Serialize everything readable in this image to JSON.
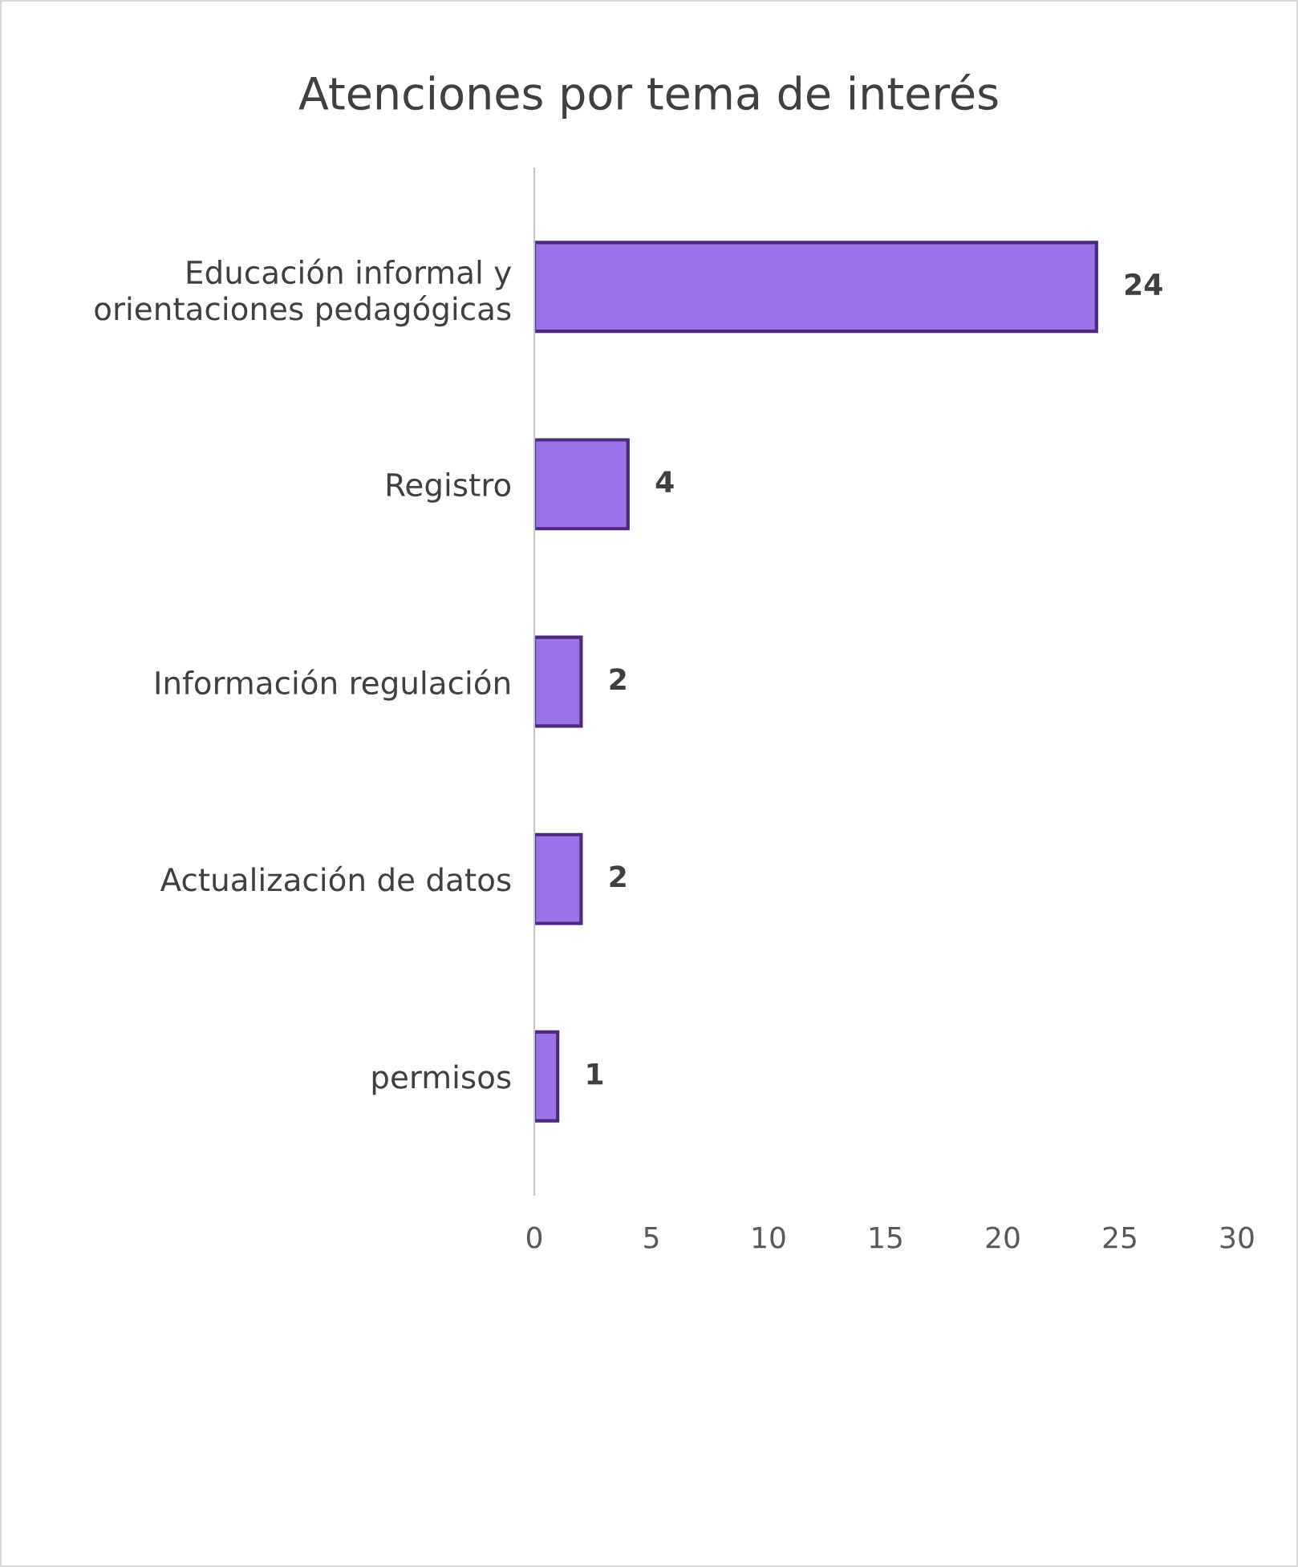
{
  "chart_data": {
    "type": "bar",
    "orientation": "horizontal",
    "title": "Atenciones por tema de interés",
    "categories": [
      "Educación informal y orientaciones pedagógicas",
      "Registro",
      "Información regulación",
      "Actualización de datos",
      "permisos"
    ],
    "values": [
      24,
      4,
      2,
      2,
      1
    ],
    "color": "#9b72e8",
    "xlim": [
      0,
      30
    ],
    "xticks": [
      0,
      5,
      10,
      15,
      20,
      25,
      30
    ],
    "grid": false,
    "data_labels": true
  }
}
